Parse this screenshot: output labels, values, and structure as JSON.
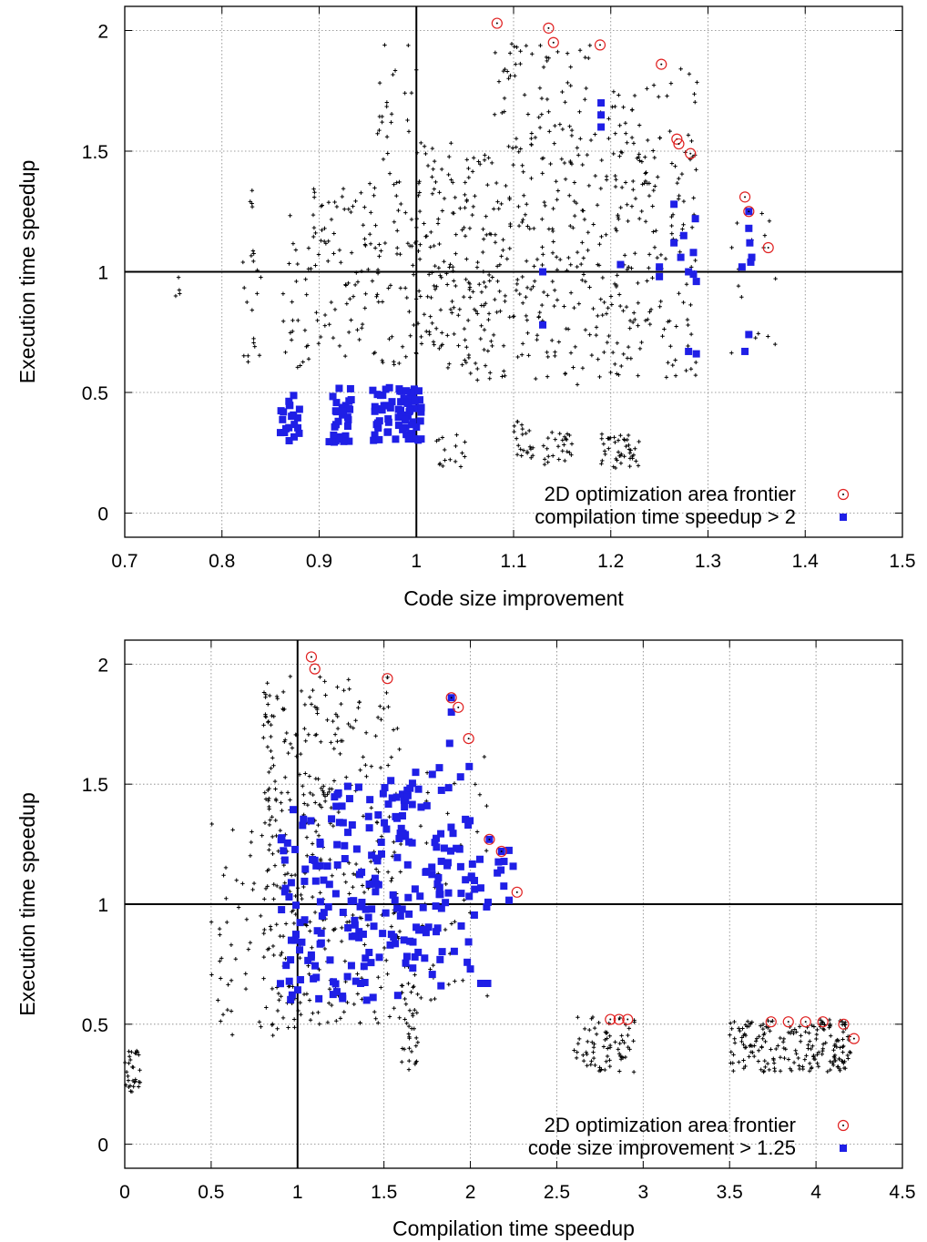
{
  "colors": {
    "points": "#000000",
    "frontier": "#e02020",
    "highlight": "#1f1fe6",
    "grid": "#808080"
  },
  "chart_data": [
    {
      "type": "scatter",
      "title": "",
      "xlabel": "Code size improvement",
      "ylabel": "Execution time speedup",
      "xlim": [
        0.7,
        1.5
      ],
      "ylim": [
        -0.1,
        2.1
      ],
      "xticks": [
        "0.7",
        "0.8",
        "0.9",
        "1",
        "1.1",
        "1.2",
        "1.3",
        "1.4",
        "1.5"
      ],
      "yticks": [
        "0",
        "0.5",
        "1",
        "1.5",
        "2"
      ],
      "grid": true,
      "reference_lines": {
        "x": 1,
        "y": 1
      },
      "legend_position": "bottom-right",
      "series": [
        {
          "name": "",
          "marker": "plus",
          "clusters": [
            {
              "x": [
                0.75,
                0.76
              ],
              "y": [
                0.85,
                0.99
              ],
              "n": 4
            },
            {
              "x": [
                0.82,
                0.84
              ],
              "y": [
                0.55,
                1.36
              ],
              "n": 22
            },
            {
              "x": [
                0.86,
                0.89
              ],
              "y": [
                0.6,
                1.25
              ],
              "n": 26
            },
            {
              "x": [
                0.89,
                0.92
              ],
              "y": [
                0.7,
                1.35
              ],
              "n": 35
            },
            {
              "x": [
                0.92,
                0.96
              ],
              "y": [
                0.65,
                1.38
              ],
              "n": 50
            },
            {
              "x": [
                0.96,
                1.0
              ],
              "y": [
                0.6,
                1.95
              ],
              "n": 70
            },
            {
              "x": [
                1.0,
                1.04
              ],
              "y": [
                0.6,
                1.55
              ],
              "n": 90
            },
            {
              "x": [
                1.04,
                1.08
              ],
              "y": [
                0.55,
                1.5
              ],
              "n": 90
            },
            {
              "x": [
                1.08,
                1.13
              ],
              "y": [
                0.55,
                1.95
              ],
              "n": 120
            },
            {
              "x": [
                1.13,
                1.18
              ],
              "y": [
                0.5,
                1.95
              ],
              "n": 110
            },
            {
              "x": [
                1.18,
                1.23
              ],
              "y": [
                0.55,
                1.75
              ],
              "n": 110
            },
            {
              "x": [
                1.23,
                1.29
              ],
              "y": [
                0.55,
                1.85
              ],
              "n": 110
            },
            {
              "x": [
                1.32,
                1.37
              ],
              "y": [
                0.65,
                1.25
              ],
              "n": 16
            },
            {
              "x": [
                1.02,
                1.05
              ],
              "y": [
                0.18,
                0.33
              ],
              "n": 16
            },
            {
              "x": [
                1.1,
                1.12
              ],
              "y": [
                0.22,
                0.38
              ],
              "n": 22
            },
            {
              "x": [
                1.13,
                1.16
              ],
              "y": [
                0.18,
                0.38
              ],
              "n": 26
            },
            {
              "x": [
                1.19,
                1.21
              ],
              "y": [
                0.18,
                0.34
              ],
              "n": 22
            },
            {
              "x": [
                1.21,
                1.23
              ],
              "y": [
                0.18,
                0.34
              ],
              "n": 22
            }
          ]
        },
        {
          "name": "2D optimization area frontier",
          "marker": "circle",
          "points": [
            [
              1.083,
              2.03
            ],
            [
              1.136,
              2.01
            ],
            [
              1.141,
              1.95
            ],
            [
              1.189,
              1.94
            ],
            [
              1.252,
              1.86
            ],
            [
              1.268,
              1.55
            ],
            [
              1.27,
              1.53
            ],
            [
              1.282,
              1.49
            ],
            [
              1.338,
              1.31
            ],
            [
              1.342,
              1.25
            ],
            [
              1.362,
              1.1
            ]
          ]
        },
        {
          "name": "compilation time speedup > 2",
          "marker": "square",
          "clusters": [
            {
              "x": [
                0.86,
                0.88
              ],
              "y": [
                0.3,
                0.52
              ],
              "n": 20
            },
            {
              "x": [
                0.91,
                0.935
              ],
              "y": [
                0.29,
                0.52
              ],
              "n": 30
            },
            {
              "x": [
                0.955,
                0.985
              ],
              "y": [
                0.3,
                0.52
              ],
              "n": 36
            },
            {
              "x": [
                0.985,
                1.005
              ],
              "y": [
                0.29,
                0.52
              ],
              "n": 40
            }
          ],
          "points": [
            [
              1.13,
              1.0
            ],
            [
              1.13,
              0.78
            ],
            [
              1.19,
              1.7
            ],
            [
              1.19,
              1.65
            ],
            [
              1.19,
              1.6
            ],
            [
              1.21,
              1.03
            ],
            [
              1.25,
              1.02
            ],
            [
              1.25,
              0.98
            ],
            [
              1.265,
              1.28
            ],
            [
              1.265,
              1.12
            ],
            [
              1.275,
              1.15
            ],
            [
              1.272,
              1.06
            ],
            [
              1.28,
              1.0
            ],
            [
              1.28,
              0.67
            ],
            [
              1.285,
              1.08
            ],
            [
              1.287,
              1.22
            ],
            [
              1.288,
              0.96
            ],
            [
              1.288,
              0.66
            ],
            [
              1.285,
              0.99
            ],
            [
              1.335,
              1.02
            ],
            [
              1.338,
              0.67
            ],
            [
              1.342,
              1.25
            ],
            [
              1.342,
              1.18
            ],
            [
              1.343,
              1.12
            ],
            [
              1.344,
              1.04
            ],
            [
              1.345,
              1.06
            ],
            [
              1.342,
              0.74
            ]
          ]
        }
      ]
    },
    {
      "type": "scatter",
      "title": "",
      "xlabel": "Compilation time speedup",
      "ylabel": "Execution time speedup",
      "xlim": [
        0,
        4.5
      ],
      "ylim": [
        -0.1,
        2.1
      ],
      "xticks": [
        "0",
        "0.5",
        "1",
        "1.5",
        "2",
        "2.5",
        "3",
        "3.5",
        "4",
        "4.5"
      ],
      "yticks": [
        "0",
        "0.5",
        "1",
        "1.5",
        "2"
      ],
      "grid": true,
      "reference_lines": {
        "x": 1,
        "y": 1
      },
      "legend_position": "bottom-right",
      "series": [
        {
          "name": "",
          "marker": "plus",
          "clusters": [
            {
              "x": [
                0.0,
                0.09
              ],
              "y": [
                0.2,
                0.4
              ],
              "n": 30
            },
            {
              "x": [
                0.5,
                0.8
              ],
              "y": [
                0.45,
                1.35
              ],
              "n": 40
            },
            {
              "x": [
                0.8,
                1.0
              ],
              "y": [
                0.45,
                1.95
              ],
              "n": 140
            },
            {
              "x": [
                1.0,
                1.3
              ],
              "y": [
                0.5,
                1.95
              ],
              "n": 160
            },
            {
              "x": [
                1.3,
                1.6
              ],
              "y": [
                0.5,
                1.95
              ],
              "n": 100
            },
            {
              "x": [
                1.6,
                1.7
              ],
              "y": [
                0.3,
                0.8
              ],
              "n": 40
            },
            {
              "x": [
                1.7,
                2.1
              ],
              "y": [
                0.6,
                1.7
              ],
              "n": 40
            },
            {
              "x": [
                2.6,
                2.95
              ],
              "y": [
                0.3,
                0.53
              ],
              "n": 70
            },
            {
              "x": [
                3.5,
                4.2
              ],
              "y": [
                0.3,
                0.52
              ],
              "n": 200
            }
          ]
        },
        {
          "name": "2D optimization area frontier",
          "marker": "circle",
          "points": [
            [
              1.08,
              2.03
            ],
            [
              1.1,
              1.98
            ],
            [
              1.52,
              1.94
            ],
            [
              1.89,
              1.86
            ],
            [
              1.93,
              1.82
            ],
            [
              1.99,
              1.69
            ],
            [
              2.11,
              1.27
            ],
            [
              2.18,
              1.22
            ],
            [
              2.27,
              1.05
            ],
            [
              2.81,
              0.52
            ],
            [
              2.86,
              0.52
            ],
            [
              2.91,
              0.52
            ],
            [
              3.74,
              0.51
            ],
            [
              3.84,
              0.51
            ],
            [
              3.94,
              0.51
            ],
            [
              4.04,
              0.51
            ],
            [
              4.16,
              0.5
            ],
            [
              4.22,
              0.44
            ]
          ]
        },
        {
          "name": "code size improvement > 1.25",
          "marker": "square",
          "clusters": [
            {
              "x": [
                0.9,
                1.2
              ],
              "y": [
                0.6,
                1.4
              ],
              "n": 60
            },
            {
              "x": [
                1.2,
                1.5
              ],
              "y": [
                0.6,
                1.5
              ],
              "n": 70
            },
            {
              "x": [
                1.5,
                1.8
              ],
              "y": [
                0.7,
                1.55
              ],
              "n": 70
            },
            {
              "x": [
                1.8,
                2.0
              ],
              "y": [
                0.7,
                1.6
              ],
              "n": 40
            },
            {
              "x": [
                2.0,
                2.28
              ],
              "y": [
                0.95,
                1.25
              ],
              "n": 18
            }
          ],
          "points": [
            [
              1.89,
              1.86
            ],
            [
              1.89,
              1.8
            ],
            [
              1.88,
              1.67
            ],
            [
              2.11,
              1.27
            ],
            [
              2.18,
              1.22
            ],
            [
              2.0,
              0.73
            ],
            [
              2.06,
              0.67
            ],
            [
              2.1,
              0.67
            ],
            [
              1.83,
              0.66
            ],
            [
              1.58,
              0.62
            ],
            [
              1.4,
              0.6
            ]
          ]
        }
      ]
    }
  ]
}
